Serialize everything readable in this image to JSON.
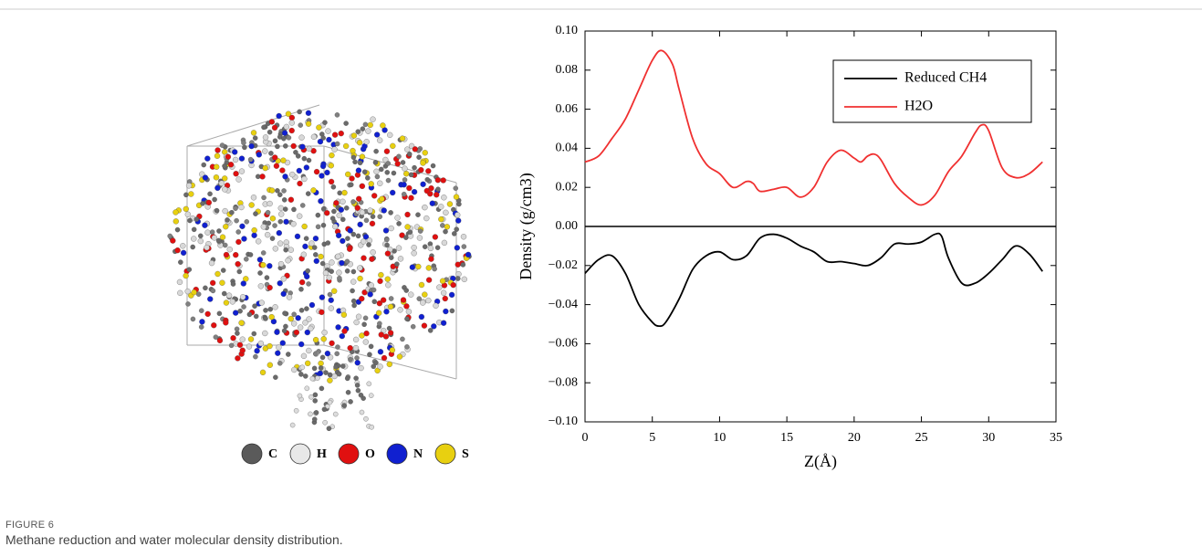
{
  "figure_label": "FIGURE 6",
  "caption": "Methane reduction and water molecular density distribution.",
  "atom_legend": [
    {
      "label": "C",
      "color": "#5a5a5a"
    },
    {
      "label": "H",
      "color": "#e8e8e8"
    },
    {
      "label": "O",
      "color": "#e01010"
    },
    {
      "label": "N",
      "color": "#1020d0"
    },
    {
      "label": "S",
      "color": "#e8d010"
    }
  ],
  "chart_data": {
    "type": "line",
    "xlabel": "Z(Å)",
    "ylabel": "Density (g/cm3)",
    "xlim": [
      0,
      35
    ],
    "xticks": [
      0,
      5,
      10,
      15,
      20,
      25,
      30,
      35
    ],
    "ylim": [
      -0.1,
      0.1
    ],
    "yticks": [
      {
        "value": -0.1,
        "label": "−0.10"
      },
      {
        "value": -0.08,
        "label": "−0.08"
      },
      {
        "value": -0.06,
        "label": "−0.06"
      },
      {
        "value": -0.04,
        "label": "−0.04"
      },
      {
        "value": -0.02,
        "label": "−0.02"
      },
      {
        "value": 0,
        "label": "0.00"
      },
      {
        "value": 0.02,
        "label": "0.02"
      },
      {
        "value": 0.04,
        "label": "0.04"
      },
      {
        "value": 0.06,
        "label": "0.06"
      },
      {
        "value": 0.08,
        "label": "0.08"
      },
      {
        "value": 0.1,
        "label": "0.10"
      }
    ],
    "legend": "upper right",
    "series": [
      {
        "name": "Reduced CH4",
        "color": "#000000",
        "x": [
          0,
          1,
          2,
          3,
          4,
          5,
          5.5,
          6,
          7,
          8,
          9,
          10,
          11,
          12,
          13,
          14,
          15,
          16,
          17,
          18,
          19,
          20,
          21,
          22,
          23,
          24,
          25,
          26,
          26.5,
          27,
          28,
          29,
          30,
          31,
          32,
          33,
          34
        ],
        "values": [
          -0.024,
          -0.017,
          -0.015,
          -0.024,
          -0.04,
          -0.049,
          -0.051,
          -0.049,
          -0.037,
          -0.022,
          -0.015,
          -0.013,
          -0.017,
          -0.015,
          -0.006,
          -0.004,
          -0.006,
          -0.01,
          -0.013,
          -0.018,
          -0.018,
          -0.019,
          -0.02,
          -0.016,
          -0.009,
          -0.009,
          -0.008,
          -0.004,
          -0.005,
          -0.016,
          -0.029,
          -0.029,
          -0.024,
          -0.017,
          -0.01,
          -0.014,
          -0.023
        ]
      },
      {
        "name": "H2O",
        "color": "#f03030",
        "x": [
          0,
          1,
          2,
          3,
          4,
          5,
          5.7,
          6.5,
          7,
          8,
          9,
          10,
          11,
          12,
          12.5,
          13,
          14,
          15,
          16,
          17,
          18,
          19,
          20,
          20.5,
          21,
          21.5,
          22,
          23,
          24,
          25,
          26,
          27,
          28,
          29,
          29.5,
          30,
          31,
          32,
          33,
          34
        ],
        "values": [
          0.033,
          0.036,
          0.045,
          0.055,
          0.07,
          0.085,
          0.09,
          0.083,
          0.07,
          0.045,
          0.032,
          0.027,
          0.02,
          0.023,
          0.022,
          0.018,
          0.019,
          0.02,
          0.015,
          0.02,
          0.033,
          0.039,
          0.035,
          0.033,
          0.036,
          0.037,
          0.034,
          0.022,
          0.015,
          0.011,
          0.016,
          0.028,
          0.036,
          0.048,
          0.052,
          0.049,
          0.03,
          0.025,
          0.027,
          0.033
        ]
      }
    ]
  }
}
